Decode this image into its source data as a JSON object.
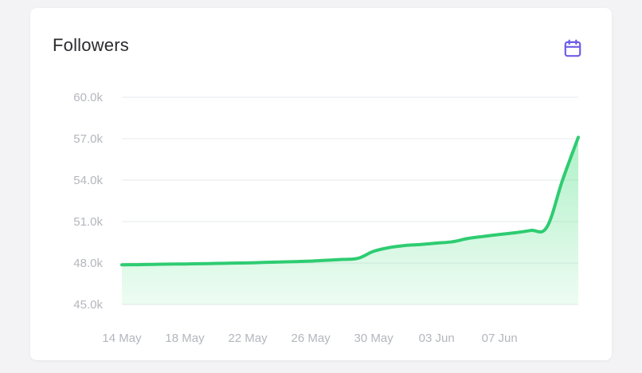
{
  "card": {
    "title": "Followers",
    "calendar_icon": "calendar-icon"
  },
  "colors": {
    "line": "#2ecc71",
    "area_top": "#6ee59a",
    "grid": "#e6e8ec",
    "tick": "#b3b6bd",
    "accent": "#6c5ce7"
  },
  "chart_data": {
    "type": "area",
    "title": "",
    "xlabel": "",
    "ylabel": "",
    "ylim": [
      45000,
      60000
    ],
    "yticks": [
      "45.0k",
      "48.0k",
      "51.0k",
      "54.0k",
      "57.0k",
      "60.0k"
    ],
    "ytick_values": [
      45000,
      48000,
      51000,
      54000,
      57000,
      60000
    ],
    "xticks": [
      "14 May",
      "18 May",
      "22 May",
      "26 May",
      "30 May",
      "03 Jun",
      "07 Jun"
    ],
    "xtick_values": [
      "2024-05-14",
      "2024-05-18",
      "2024-05-22",
      "2024-05-26",
      "2024-05-30",
      "2024-06-03",
      "2024-06-07"
    ],
    "grid": true,
    "legend": "none",
    "series": [
      {
        "x": [
          "2024-05-14",
          "2024-05-15",
          "2024-05-16",
          "2024-05-17",
          "2024-05-18",
          "2024-05-19",
          "2024-05-20",
          "2024-05-21",
          "2024-05-22",
          "2024-05-23",
          "2024-05-24",
          "2024-05-25",
          "2024-05-26",
          "2024-05-27",
          "2024-05-28",
          "2024-05-29",
          "2024-05-30",
          "2024-05-31",
          "2024-06-01",
          "2024-06-02",
          "2024-06-03",
          "2024-06-04",
          "2024-06-05",
          "2024-06-06",
          "2024-06-07",
          "2024-06-08",
          "2024-06-09",
          "2024-06-10",
          "2024-06-11",
          "2024-06-12"
        ],
        "values": [
          47870,
          47880,
          47900,
          47920,
          47930,
          47950,
          47970,
          47990,
          48010,
          48040,
          48070,
          48100,
          48140,
          48200,
          48260,
          48340,
          48850,
          49120,
          49270,
          49340,
          49440,
          49540,
          49780,
          49930,
          50070,
          50190,
          50360,
          50590,
          54000,
          57100
        ]
      }
    ]
  }
}
